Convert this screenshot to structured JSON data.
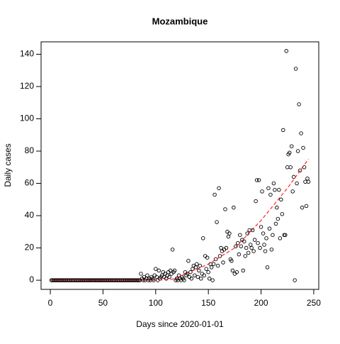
{
  "chart_data": {
    "type": "scatter",
    "title": "Mozambique",
    "xlabel": "Days since 2020-01-01",
    "ylabel": "Daily cases",
    "x": [
      1,
      2,
      3,
      4,
      5,
      6,
      7,
      8,
      9,
      10,
      11,
      12,
      13,
      14,
      15,
      16,
      17,
      18,
      19,
      20,
      21,
      22,
      23,
      24,
      25,
      26,
      27,
      28,
      29,
      30,
      31,
      32,
      33,
      34,
      35,
      36,
      37,
      38,
      39,
      40,
      41,
      42,
      43,
      44,
      45,
      46,
      47,
      48,
      49,
      50,
      51,
      52,
      53,
      54,
      55,
      56,
      57,
      58,
      59,
      60,
      61,
      62,
      63,
      64,
      65,
      66,
      67,
      68,
      69,
      70,
      71,
      72,
      73,
      74,
      75,
      76,
      77,
      78,
      79,
      80,
      81,
      82,
      83,
      84,
      85,
      86,
      87,
      88,
      89,
      90,
      91,
      92,
      93,
      94,
      95,
      96,
      97,
      98,
      99,
      100,
      101,
      102,
      103,
      104,
      105,
      106,
      107,
      108,
      109,
      110,
      111,
      112,
      113,
      114,
      115,
      116,
      117,
      118,
      119,
      120,
      121,
      122,
      123,
      124,
      125,
      126,
      127,
      128,
      129,
      130,
      131,
      132,
      133,
      134,
      135,
      136,
      137,
      138,
      139,
      140,
      141,
      142,
      143,
      144,
      145,
      146,
      147,
      148,
      149,
      150,
      151,
      152,
      153,
      154,
      155,
      156,
      157,
      158,
      159,
      160,
      161,
      162,
      163,
      164,
      165,
      166,
      167,
      168,
      169,
      170,
      171,
      172,
      173,
      174,
      175,
      176,
      177,
      178,
      179,
      180,
      181,
      182,
      183,
      184,
      185,
      186,
      187,
      188,
      189,
      190,
      191,
      192,
      193,
      194,
      195,
      196,
      197,
      198,
      199,
      200,
      201,
      202,
      203,
      204,
      205,
      206,
      207,
      208,
      209,
      210,
      211,
      212,
      213,
      214,
      215,
      216,
      217,
      218,
      219,
      220,
      221,
      222,
      223,
      224,
      225,
      226,
      227,
      228,
      229,
      230,
      231,
      232,
      233,
      234,
      235,
      236,
      237,
      238,
      239,
      240,
      241,
      242,
      243,
      244,
      245
    ],
    "values": [
      0,
      0,
      0,
      0,
      0,
      0,
      0,
      0,
      0,
      0,
      0,
      0,
      0,
      0,
      0,
      0,
      0,
      0,
      0,
      0,
      0,
      0,
      0,
      0,
      0,
      0,
      0,
      0,
      0,
      0,
      0,
      0,
      0,
      0,
      0,
      0,
      0,
      0,
      0,
      0,
      0,
      0,
      0,
      0,
      0,
      0,
      0,
      0,
      0,
      0,
      0,
      0,
      0,
      0,
      0,
      0,
      0,
      0,
      0,
      0,
      0,
      0,
      0,
      0,
      0,
      0,
      0,
      0,
      0,
      0,
      0,
      0,
      0,
      0,
      0,
      0,
      0,
      0,
      0,
      0,
      0,
      0,
      0,
      0,
      0,
      4,
      1,
      0,
      2,
      0,
      1,
      3,
      0,
      1,
      0,
      2,
      1,
      0,
      3,
      7,
      2,
      0,
      6,
      1,
      2,
      3,
      5,
      2,
      4,
      1,
      3,
      5,
      2,
      6,
      4,
      19,
      5,
      6,
      0,
      1,
      0,
      3,
      1,
      0,
      2,
      1,
      0,
      5,
      3,
      4,
      12,
      2,
      5,
      1,
      7,
      9,
      3,
      8,
      10,
      2,
      6,
      9,
      1,
      4,
      26,
      3,
      15,
      7,
      14,
      5,
      1,
      10,
      8,
      0,
      10,
      53,
      13,
      36,
      9,
      57,
      15,
      20,
      18,
      11,
      19,
      44,
      20,
      30,
      27,
      29,
      13,
      12,
      6,
      45,
      4,
      21,
      5,
      23,
      16,
      28,
      21,
      25,
      6,
      24,
      15,
      20,
      29,
      17,
      31,
      22,
      20,
      31,
      18,
      25,
      49,
      62,
      23,
      62,
      20,
      33,
      55,
      29,
      22,
      18,
      26,
      8,
      57,
      32,
      53,
      19,
      28,
      60,
      56,
      35,
      45,
      38,
      56,
      26,
      50,
      41,
      93,
      28,
      28,
      142,
      70,
      78,
      79,
      70,
      83,
      55,
      64,
      0,
      131,
      60,
      80,
      109,
      68,
      91,
      45,
      82,
      70,
      61,
      46,
      63,
      61
    ],
    "trend": {
      "x": [
        1,
        25,
        50,
        75,
        100,
        115,
        125,
        150,
        175,
        200,
        225,
        245
      ],
      "values": [
        0,
        0,
        0,
        0,
        0,
        0.5,
        3,
        10,
        20,
        37,
        57,
        75
      ],
      "color": "#ff0000"
    },
    "color": "#000000",
    "xlim": [
      -8.76,
      254.76
    ],
    "xticks": [
      0,
      50,
      100,
      150,
      200,
      250
    ],
    "ylim": [
      -5.68,
      147.68
    ],
    "yticks": [
      0,
      20,
      40,
      60,
      80,
      100,
      120,
      140
    ]
  }
}
